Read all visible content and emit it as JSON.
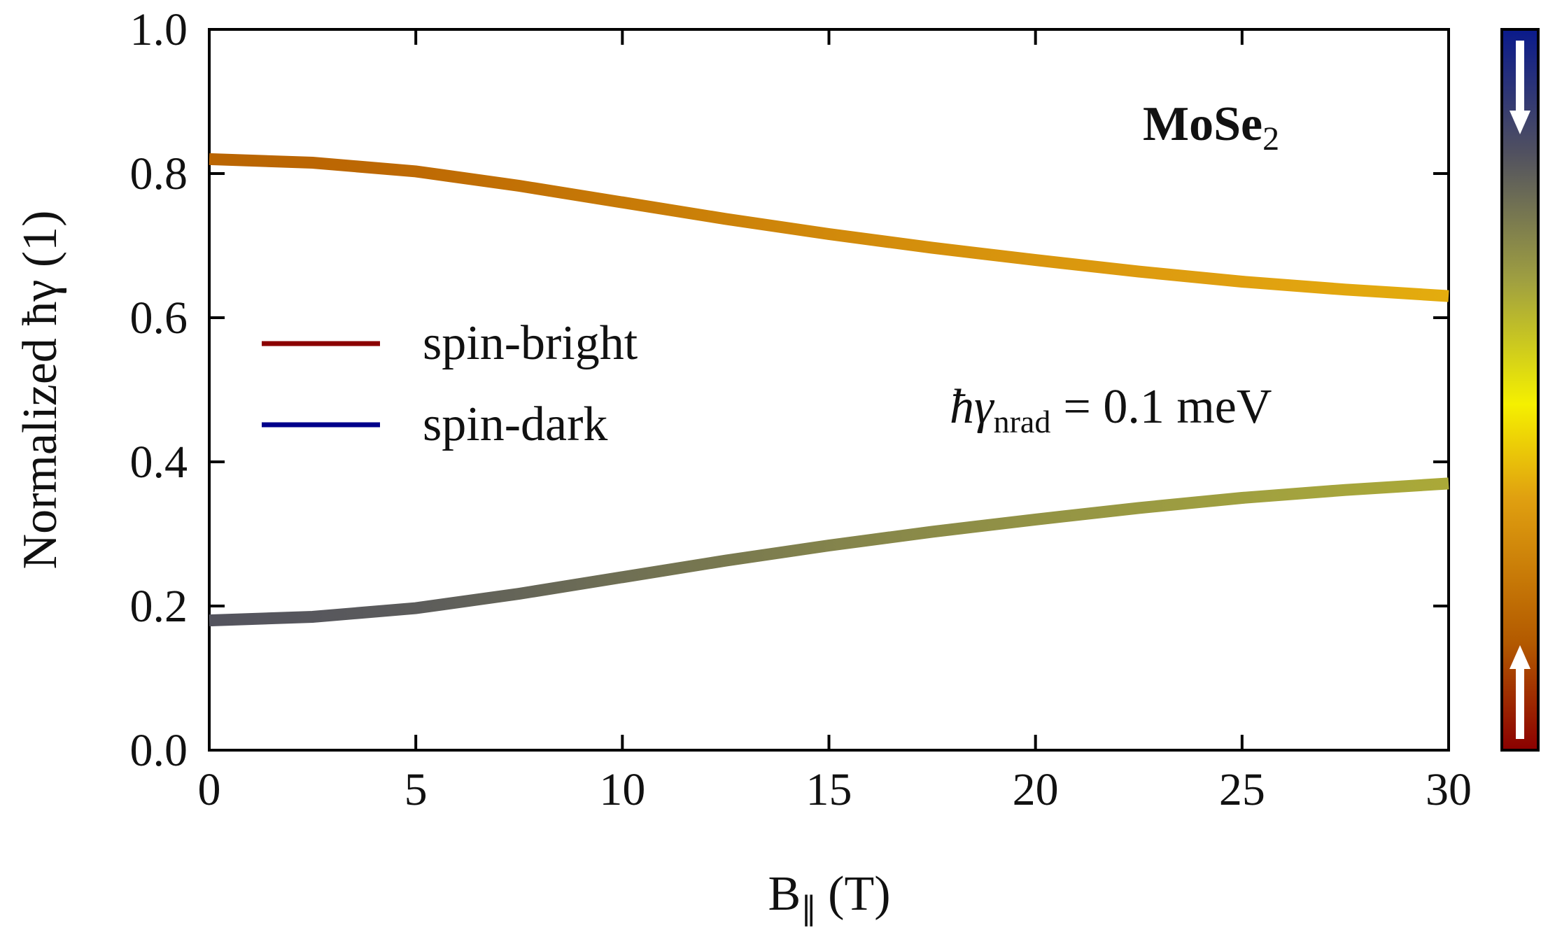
{
  "chart_data": {
    "type": "line",
    "xlabel": {
      "text": "B",
      "subscript": "∥",
      "unit": "(T)"
    },
    "ylabel": "Normalized ħγ (1)",
    "title": {
      "text": "MoSe",
      "subscript": "2"
    },
    "annotation": {
      "symbol": "ħγ",
      "subscript": "nrad",
      "text": "= 0.1 meV"
    },
    "x": [
      0,
      2.5,
      5,
      7.5,
      10,
      12.5,
      15,
      17.5,
      20,
      22.5,
      25,
      27.5,
      30
    ],
    "series": [
      {
        "name": "spin-bright",
        "color": "#8b0000",
        "values": [
          0.82,
          0.815,
          0.803,
          0.783,
          0.76,
          0.737,
          0.716,
          0.697,
          0.68,
          0.664,
          0.65,
          0.639,
          0.63
        ]
      },
      {
        "name": "spin-dark",
        "color": "#00008b",
        "values": [
          0.18,
          0.185,
          0.197,
          0.217,
          0.24,
          0.263,
          0.284,
          0.303,
          0.32,
          0.336,
          0.35,
          0.361,
          0.37
        ]
      }
    ],
    "xlim": [
      0,
      30
    ],
    "xticks": [
      0,
      5,
      10,
      15,
      20,
      25,
      30
    ],
    "ylim": [
      0,
      1
    ],
    "yticks": [
      {
        "value": 0,
        "label": "0.0"
      },
      {
        "value": 0.2,
        "label": "0.2"
      },
      {
        "value": 0.4,
        "label": "0.4"
      },
      {
        "value": 0.6,
        "label": "0.6"
      },
      {
        "value": 0.8,
        "label": "0.8"
      },
      {
        "value": 1,
        "label": "1.0"
      }
    ],
    "grid": false,
    "legend": "center left",
    "colormap": [
      {
        "pos": 0,
        "color": "#8b0000"
      },
      {
        "pos": 0.15,
        "color": "#b35a00"
      },
      {
        "pos": 0.35,
        "color": "#e0a010"
      },
      {
        "pos": 0.48,
        "color": "#f5f000"
      },
      {
        "pos": 0.65,
        "color": "#a0a040"
      },
      {
        "pos": 0.83,
        "color": "#505060"
      },
      {
        "pos": 1,
        "color": "#0a1a8c"
      }
    ]
  }
}
